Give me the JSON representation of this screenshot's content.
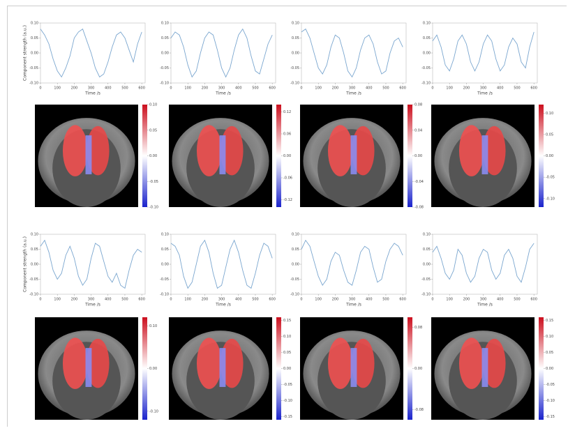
{
  "chart_data": [
    {
      "type": "line",
      "ylabel": "Component strength (a.u.)",
      "xlabel": "Time /s",
      "color": "#7aa6cf",
      "x": [
        0,
        25,
        50,
        75,
        100,
        125,
        150,
        175,
        200,
        225,
        250,
        275,
        300,
        325,
        350,
        375,
        400,
        425,
        450,
        475,
        500,
        525,
        550,
        575,
        600
      ],
      "values": [
        0.08,
        0.06,
        0.03,
        -0.02,
        -0.06,
        -0.08,
        -0.05,
        -0.01,
        0.05,
        0.07,
        0.08,
        0.04,
        0.0,
        -0.05,
        -0.08,
        -0.07,
        -0.03,
        0.02,
        0.06,
        0.07,
        0.05,
        0.01,
        -0.03,
        0.03,
        0.07
      ],
      "xlim": [
        0,
        620
      ],
      "xticks": [
        0,
        100,
        200,
        300,
        400,
        500,
        600
      ],
      "ylim": [
        -0.1,
        0.1
      ],
      "yticks": [
        {
          "value": -0.1,
          "label": "-0.10"
        },
        {
          "value": -0.05,
          "label": "-0.05"
        },
        {
          "value": 0,
          "label": "0.00"
        },
        {
          "value": 0.05,
          "label": "0.05"
        },
        {
          "value": 0.1,
          "label": "0.10"
        }
      ]
    },
    {
      "type": "line",
      "xlabel": "Time /s",
      "color": "#7aa6cf",
      "x": [
        0,
        25,
        50,
        75,
        100,
        125,
        150,
        175,
        200,
        225,
        250,
        275,
        300,
        325,
        350,
        375,
        400,
        425,
        450,
        475,
        500,
        525,
        550,
        575,
        600
      ],
      "values": [
        0.05,
        0.07,
        0.06,
        0.02,
        -0.04,
        -0.08,
        -0.06,
        0.0,
        0.05,
        0.07,
        0.06,
        0.01,
        -0.05,
        -0.08,
        -0.05,
        0.01,
        0.06,
        0.08,
        0.05,
        -0.01,
        -0.06,
        -0.07,
        -0.02,
        0.03,
        0.06
      ],
      "xlim": [
        0,
        620
      ],
      "xticks": [
        0,
        100,
        200,
        300,
        400,
        500,
        600
      ],
      "ylim": [
        -0.1,
        0.1
      ],
      "yticks": [
        {
          "value": -0.1,
          "label": "-0.10"
        },
        {
          "value": -0.05,
          "label": "-0.05"
        },
        {
          "value": 0,
          "label": "0.00"
        },
        {
          "value": 0.05,
          "label": "0.05"
        },
        {
          "value": 0.1,
          "label": "0.10"
        }
      ]
    },
    {
      "type": "line",
      "xlabel": "Time /s",
      "color": "#7aa6cf",
      "x": [
        0,
        25,
        50,
        75,
        100,
        125,
        150,
        175,
        200,
        225,
        250,
        275,
        300,
        325,
        350,
        375,
        400,
        425,
        450,
        475,
        500,
        525,
        550,
        575,
        600
      ],
      "values": [
        0.07,
        0.08,
        0.05,
        0.0,
        -0.05,
        -0.07,
        -0.04,
        0.02,
        0.06,
        0.05,
        0.0,
        -0.06,
        -0.08,
        -0.05,
        0.01,
        0.05,
        0.06,
        0.03,
        -0.03,
        -0.07,
        -0.06,
        0.0,
        0.04,
        0.05,
        0.02
      ],
      "xlim": [
        0,
        620
      ],
      "xticks": [
        0,
        100,
        200,
        300,
        400,
        500,
        600
      ],
      "ylim": [
        -0.1,
        0.1
      ],
      "yticks": [
        {
          "value": -0.1,
          "label": "-0.10"
        },
        {
          "value": -0.05,
          "label": "-0.05"
        },
        {
          "value": 0,
          "label": "0.00"
        },
        {
          "value": 0.05,
          "label": "0.05"
        },
        {
          "value": 0.1,
          "label": "0.10"
        }
      ]
    },
    {
      "type": "line",
      "xlabel": "Time /s",
      "color": "#7aa6cf",
      "x": [
        0,
        25,
        50,
        75,
        100,
        125,
        150,
        175,
        200,
        225,
        250,
        275,
        300,
        325,
        350,
        375,
        400,
        425,
        450,
        475,
        500,
        525,
        550,
        575,
        600
      ],
      "values": [
        0.04,
        0.06,
        0.02,
        -0.04,
        -0.06,
        -0.02,
        0.04,
        0.06,
        0.03,
        -0.03,
        -0.06,
        -0.03,
        0.03,
        0.06,
        0.04,
        -0.02,
        -0.06,
        -0.04,
        0.02,
        0.05,
        0.03,
        -0.03,
        -0.05,
        0.02,
        0.07
      ],
      "xlim": [
        0,
        620
      ],
      "xticks": [
        0,
        100,
        200,
        300,
        400,
        500,
        600
      ],
      "ylim": [
        -0.1,
        0.1
      ],
      "yticks": [
        {
          "value": -0.1,
          "label": "-0.10"
        },
        {
          "value": -0.05,
          "label": "-0.05"
        },
        {
          "value": 0,
          "label": "0.00"
        },
        {
          "value": 0.05,
          "label": "0.05"
        },
        {
          "value": 0.1,
          "label": "0.10"
        }
      ]
    },
    {
      "type": "line",
      "ylabel": "Component strength (a.u.)",
      "xlabel": "Time /s",
      "color": "#7aa6cf",
      "x": [
        0,
        25,
        50,
        75,
        100,
        125,
        150,
        175,
        200,
        225,
        250,
        275,
        300,
        325,
        350,
        375,
        400,
        425,
        450,
        475,
        500,
        525,
        550,
        575,
        600
      ],
      "values": [
        0.06,
        0.08,
        0.04,
        -0.02,
        -0.05,
        -0.03,
        0.03,
        0.06,
        0.02,
        -0.04,
        -0.07,
        -0.05,
        0.02,
        0.07,
        0.06,
        0.01,
        -0.04,
        -0.06,
        -0.03,
        -0.07,
        -0.08,
        -0.02,
        0.03,
        0.05,
        0.04
      ],
      "xlim": [
        0,
        620
      ],
      "xticks": [
        0,
        100,
        200,
        300,
        400,
        500,
        600
      ],
      "ylim": [
        -0.1,
        0.1
      ],
      "yticks": [
        {
          "value": -0.1,
          "label": "-0.10"
        },
        {
          "value": -0.05,
          "label": "-0.05"
        },
        {
          "value": 0,
          "label": "0.00"
        },
        {
          "value": 0.05,
          "label": "0.05"
        },
        {
          "value": 0.1,
          "label": "0.10"
        }
      ]
    },
    {
      "type": "line",
      "xlabel": "Time /s",
      "color": "#7aa6cf",
      "x": [
        0,
        25,
        50,
        75,
        100,
        125,
        150,
        175,
        200,
        225,
        250,
        275,
        300,
        325,
        350,
        375,
        400,
        425,
        450,
        475,
        500,
        525,
        550,
        575,
        600
      ],
      "values": [
        0.07,
        0.06,
        0.03,
        -0.04,
        -0.08,
        -0.06,
        0.0,
        0.06,
        0.08,
        0.04,
        -0.03,
        -0.08,
        -0.07,
        -0.01,
        0.05,
        0.08,
        0.04,
        -0.02,
        -0.07,
        -0.08,
        -0.03,
        0.03,
        0.07,
        0.06,
        0.02
      ],
      "xlim": [
        0,
        620
      ],
      "xticks": [
        0,
        100,
        200,
        300,
        400,
        500,
        600
      ],
      "ylim": [
        -0.1,
        0.1
      ],
      "yticks": [
        {
          "value": -0.1,
          "label": "-0.10"
        },
        {
          "value": -0.05,
          "label": "-0.05"
        },
        {
          "value": 0,
          "label": "0.00"
        },
        {
          "value": 0.05,
          "label": "0.05"
        },
        {
          "value": 0.1,
          "label": "0.10"
        }
      ]
    },
    {
      "type": "line",
      "xlabel": "Time /s",
      "color": "#7aa6cf",
      "x": [
        0,
        25,
        50,
        75,
        100,
        125,
        150,
        175,
        200,
        225,
        250,
        275,
        300,
        325,
        350,
        375,
        400,
        425,
        450,
        475,
        500,
        525,
        550,
        575,
        600
      ],
      "values": [
        0.05,
        0.08,
        0.06,
        0.01,
        -0.04,
        -0.07,
        -0.05,
        0.01,
        0.04,
        0.03,
        -0.02,
        -0.06,
        -0.07,
        -0.02,
        0.04,
        0.06,
        0.05,
        -0.01,
        -0.06,
        -0.05,
        0.01,
        0.05,
        0.07,
        0.06,
        0.03
      ],
      "xlim": [
        0,
        620
      ],
      "xticks": [
        0,
        100,
        200,
        300,
        400,
        500,
        600
      ],
      "ylim": [
        -0.1,
        0.1
      ],
      "yticks": [
        {
          "value": -0.1,
          "label": "-0.10"
        },
        {
          "value": -0.05,
          "label": "-0.05"
        },
        {
          "value": 0,
          "label": "0.00"
        },
        {
          "value": 0.05,
          "label": "0.05"
        },
        {
          "value": 0.1,
          "label": "0.10"
        }
      ]
    },
    {
      "type": "line",
      "xlabel": "Time /s",
      "color": "#7aa6cf",
      "x": [
        0,
        25,
        50,
        75,
        100,
        125,
        150,
        175,
        200,
        225,
        250,
        275,
        300,
        325,
        350,
        375,
        400,
        425,
        450,
        475,
        500,
        525,
        550,
        575,
        600
      ],
      "values": [
        0.04,
        0.06,
        0.02,
        -0.03,
        -0.05,
        -0.02,
        0.05,
        0.03,
        -0.03,
        -0.06,
        -0.04,
        0.02,
        0.05,
        0.04,
        -0.02,
        -0.05,
        -0.03,
        0.03,
        0.05,
        0.02,
        -0.04,
        -0.06,
        -0.01,
        0.05,
        0.07
      ],
      "xlim": [
        0,
        620
      ],
      "xticks": [
        0,
        100,
        200,
        300,
        400,
        500,
        600
      ],
      "ylim": [
        -0.1,
        0.1
      ],
      "yticks": [
        {
          "value": -0.1,
          "label": "-0.10"
        },
        {
          "value": -0.05,
          "label": "-0.05"
        },
        {
          "value": 0,
          "label": "0.00"
        },
        {
          "value": 0.05,
          "label": "0.05"
        },
        {
          "value": 0.1,
          "label": "0.10"
        }
      ]
    }
  ],
  "colorbars": [
    {
      "clim": [
        -0.1,
        0.1
      ],
      "ticks": [
        {
          "value": -0.1,
          "label": "-0.10"
        },
        {
          "value": -0.05,
          "label": "-0.05"
        },
        {
          "value": 0,
          "label": "0.00"
        },
        {
          "value": 0.05,
          "label": "0.05"
        },
        {
          "value": 0.1,
          "label": "0.10"
        }
      ]
    },
    {
      "clim": [
        -0.14,
        0.14
      ],
      "ticks": [
        {
          "value": -0.12,
          "label": "-0.12"
        },
        {
          "value": -0.06,
          "label": "-0.06"
        },
        {
          "value": 0,
          "label": "0.00"
        },
        {
          "value": 0.06,
          "label": "0.06"
        },
        {
          "value": 0.12,
          "label": "0.12"
        }
      ]
    },
    {
      "clim": [
        -0.08,
        0.08
      ],
      "ticks": [
        {
          "value": -0.08,
          "label": "-0.08"
        },
        {
          "value": -0.04,
          "label": "-0.04"
        },
        {
          "value": 0,
          "label": "0.00"
        },
        {
          "value": 0.04,
          "label": "0.04"
        },
        {
          "value": 0.08,
          "label": "0.08"
        }
      ]
    },
    {
      "clim": [
        -0.12,
        0.12
      ],
      "ticks": [
        {
          "value": -0.1,
          "label": "-0.10"
        },
        {
          "value": -0.05,
          "label": "-0.05"
        },
        {
          "value": 0,
          "label": "0.00"
        },
        {
          "value": 0.05,
          "label": "0.05"
        },
        {
          "value": 0.1,
          "label": "0.10"
        }
      ]
    },
    {
      "clim": [
        -0.12,
        0.12
      ],
      "ticks": [
        {
          "value": -0.1,
          "label": "-0.10"
        },
        {
          "value": 0,
          "label": "0.00"
        },
        {
          "value": 0.1,
          "label": "0.10"
        }
      ]
    },
    {
      "clim": [
        -0.16,
        0.16
      ],
      "ticks": [
        {
          "value": -0.15,
          "label": "-0.15"
        },
        {
          "value": -0.1,
          "label": "-0.10"
        },
        {
          "value": -0.05,
          "label": "-0.05"
        },
        {
          "value": 0,
          "label": "0.00"
        },
        {
          "value": 0.05,
          "label": "0.05"
        },
        {
          "value": 0.1,
          "label": "0.10"
        },
        {
          "value": 0.15,
          "label": "0.15"
        }
      ]
    },
    {
      "clim": [
        -0.1,
        0.1
      ],
      "ticks": [
        {
          "value": -0.08,
          "label": "-0.08"
        },
        {
          "value": 0,
          "label": "0.00"
        },
        {
          "value": 0.08,
          "label": "0.08"
        }
      ]
    },
    {
      "clim": [
        -0.16,
        0.16
      ],
      "ticks": [
        {
          "value": -0.15,
          "label": "-0.15"
        },
        {
          "value": -0.1,
          "label": "-0.10"
        },
        {
          "value": -0.05,
          "label": "-0.05"
        },
        {
          "value": 0,
          "label": "0.00"
        },
        {
          "value": 0.05,
          "label": "0.05"
        },
        {
          "value": 0.1,
          "label": "0.10"
        },
        {
          "value": 0.15,
          "label": "0.15"
        }
      ]
    }
  ]
}
